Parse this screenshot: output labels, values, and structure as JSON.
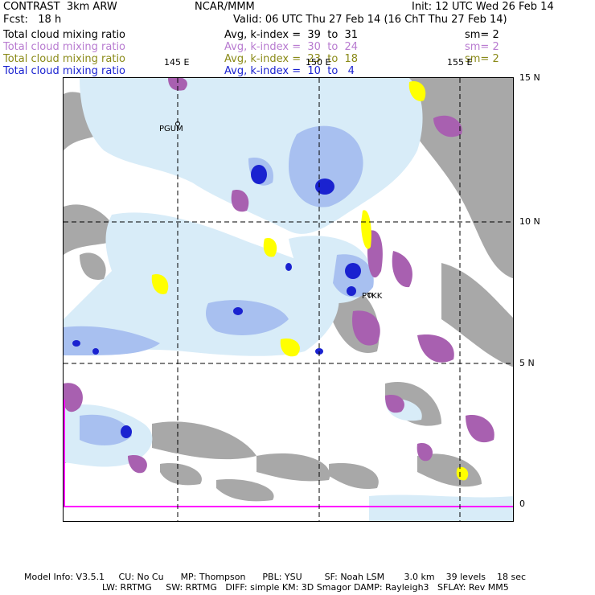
{
  "header": {
    "row1": {
      "left": "CONTRAST  3km ARW",
      "center": "NCAR/MMM",
      "right": "Init: 12 UTC Wed 26 Feb 14"
    },
    "row2": {
      "left": "Fcst:   18 h",
      "right": "Valid: 06 UTC Thu 27 Feb 14 (16 ChT Thu 27 Feb 14)"
    }
  },
  "fields": [
    {
      "name": "Total cloud mixing ratio",
      "avg": "Avg, k-index =  39  to  31",
      "sm": "sm= 2",
      "color": "#000000"
    },
    {
      "name": "Total cloud mixing ratio",
      "avg": "Avg, k-index =  30  to  24",
      "sm": "sm= 2",
      "color": "#b87bd0"
    },
    {
      "name": "Total cloud mixing ratio",
      "avg": "Avg, k-index =  23  to  18",
      "sm": "sm= 2",
      "color": "#8a8a18"
    },
    {
      "name": "Total cloud mixing ratio",
      "avg": "Avg, k-index =  10  to   4",
      "color": "#1a22d0"
    }
  ],
  "map": {
    "lon_labels": [
      "145 E",
      "150 E",
      "155 E"
    ],
    "lat_labels": [
      "15 N",
      "10 N",
      "5 N",
      "0"
    ],
    "stations": [
      {
        "id": "PGUM"
      },
      {
        "id": "PTKK"
      }
    ],
    "colors": {
      "gray": "#a8a8a8",
      "violet": "#a860b0",
      "yellow": "#ffff00",
      "lightblue": "#d8ecf8",
      "midblue": "#a8c0f0",
      "blue": "#3050e0",
      "darkblue": "#1010c0",
      "magenta": "#ff00ff"
    }
  },
  "footer": {
    "line1": "Model Info: V3.5.1     CU: No Cu      MP: Thompson      PBL: YSU        SF: Noah LSM       3.0 km    39 levels    18 sec",
    "line2": "LW: RRTMG     SW: RRTMG   DIFF: simple KM: 3D Smagor DAMP: Rayleigh3   SFLAY: Rev MM5"
  }
}
